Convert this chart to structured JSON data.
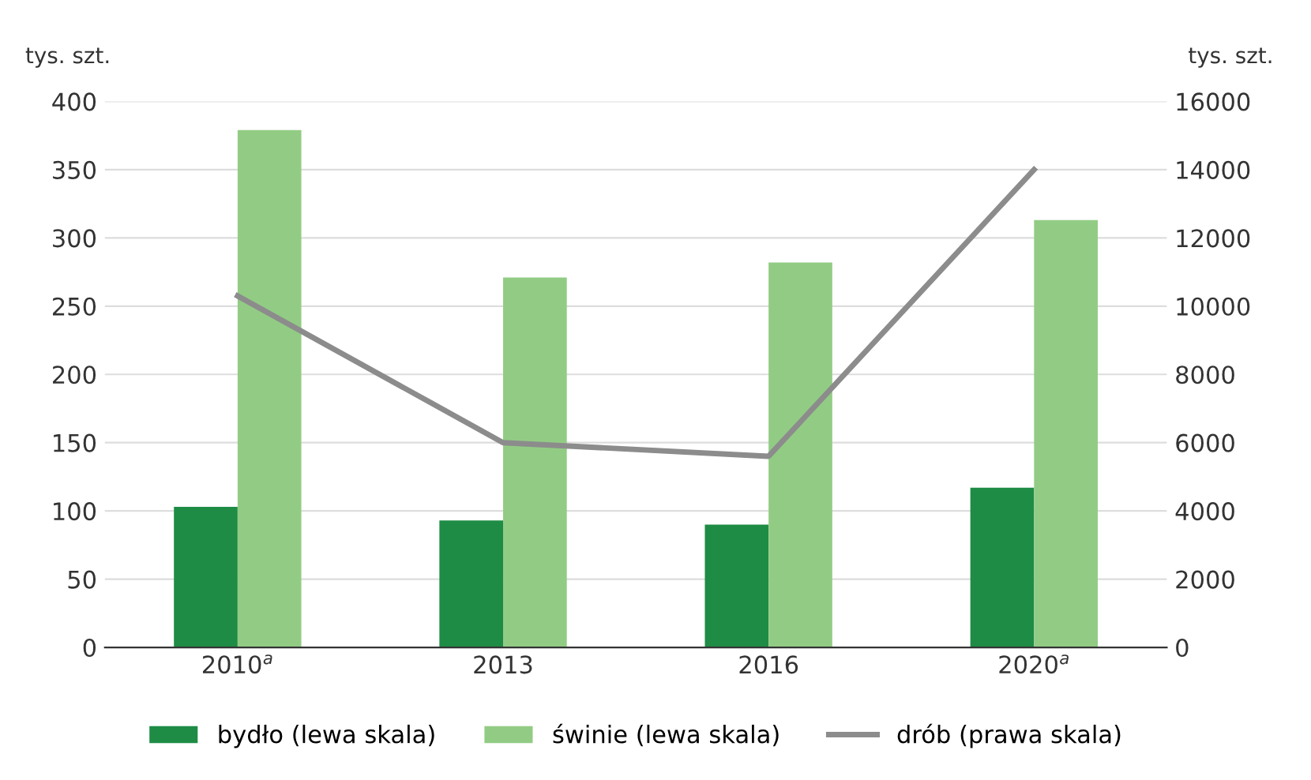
{
  "chart_data": {
    "type": "bar",
    "categories": [
      "2010$^{a}$",
      "2013",
      "2016",
      "2020$^{a}$"
    ],
    "ylabel": "tys. szt.",
    "y2label": "tys. szt.",
    "ylim": [
      0,
      400
    ],
    "yticks": [
      0,
      50,
      100,
      150,
      200,
      250,
      300,
      350,
      400
    ],
    "y2lim": [
      0,
      16000
    ],
    "y2ticks": [
      0,
      2000,
      4000,
      6000,
      8000,
      10000,
      12000,
      14000,
      16000
    ],
    "grid": "y",
    "legend": "bottom",
    "series": [
      {
        "name": "bydło (lewa skala)",
        "color": "#1e8c45",
        "values": [
          103,
          93,
          90,
          117
        ]
      },
      {
        "name": "świnie (lewa skala)",
        "color": "#92cc84",
        "values": [
          379,
          271,
          282,
          313
        ]
      },
      {
        "name": "drób (prawa skala)",
        "color": "#8c8c8c",
        "type": "line",
        "axis": "y2",
        "values": [
          10300,
          6000,
          5600,
          14000
        ]
      }
    ]
  }
}
